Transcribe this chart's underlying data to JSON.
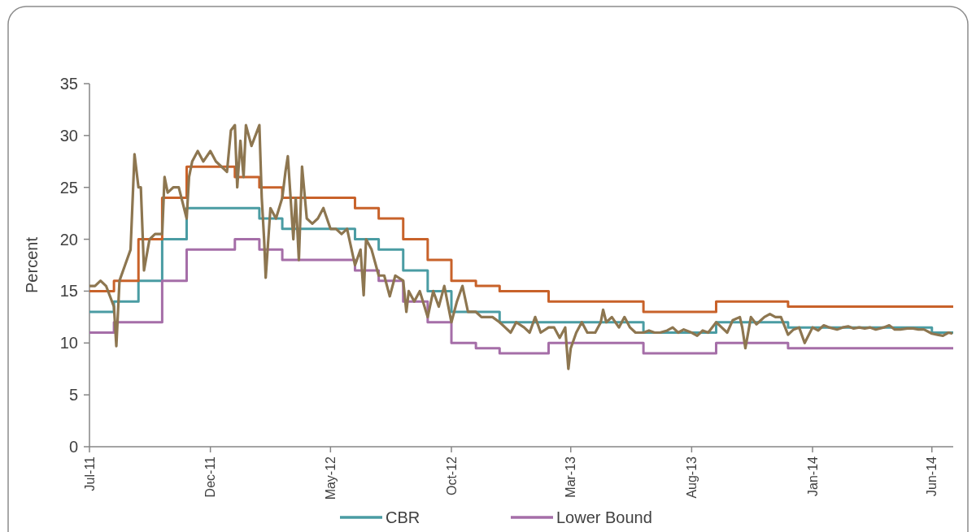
{
  "chart_data": {
    "type": "line",
    "ylabel": "Percent",
    "xlim": [
      "2011-07-01",
      "2014-06-28"
    ],
    "xticks": [
      {
        "value": "2011-07-01",
        "label": "Jul-11"
      },
      {
        "value": "2011-12-01",
        "label": "Dec-11"
      },
      {
        "value": "2012-05-01",
        "label": "May-12"
      },
      {
        "value": "2012-10-01",
        "label": "Oct-12"
      },
      {
        "value": "2013-03-01",
        "label": "Mar-13"
      },
      {
        "value": "2013-08-01",
        "label": "Aug-13"
      },
      {
        "value": "2014-01-01",
        "label": "Jan-14"
      },
      {
        "value": "2014-06-01",
        "label": "Jun-14"
      }
    ],
    "ylim": [
      0,
      35
    ],
    "yticks": [
      0,
      5,
      10,
      15,
      20,
      25,
      30,
      35
    ],
    "grid": false,
    "legend": "bottom",
    "marker": "none",
    "line_style": "solid",
    "series": [
      {
        "name": "CBR",
        "type": "step",
        "color": "#4a9ca3",
        "x": [
          "2011-07-01",
          "2011-08-01",
          "2011-09-01",
          "2011-10-01",
          "2011-11-01",
          "2012-02-01",
          "2012-03-01",
          "2012-06-01",
          "2012-07-01",
          "2012-08-01",
          "2012-09-01",
          "2012-10-01",
          "2012-12-01",
          "2013-06-01",
          "2013-09-01",
          "2013-12-01",
          "2014-06-01",
          "2014-06-28"
        ],
        "values": [
          13,
          14,
          16,
          20,
          23,
          22,
          21,
          20,
          19,
          17,
          15,
          13,
          12,
          11,
          12,
          11.5,
          11,
          11
        ]
      },
      {
        "name": "Lower Bound",
        "type": "step",
        "color": "#a56ea8",
        "x": [
          "2011-07-01",
          "2011-08-01",
          "2011-10-01",
          "2011-11-01",
          "2012-01-01",
          "2012-02-01",
          "2012-03-01",
          "2012-06-01",
          "2012-07-01",
          "2012-08-01",
          "2012-09-01",
          "2012-10-01",
          "2012-11-01",
          "2012-12-01",
          "2013-02-01",
          "2013-06-01",
          "2013-09-01",
          "2013-12-01",
          "2014-06-28"
        ],
        "values": [
          11,
          12,
          16,
          19,
          20,
          19,
          18,
          17,
          16,
          14,
          12,
          10,
          9.5,
          9,
          10,
          9,
          10,
          9.5,
          9.5
        ]
      },
      {
        "type": "step",
        "color": "#c8622a",
        "x": [
          "2011-07-01",
          "2011-08-01",
          "2011-09-01",
          "2011-10-01",
          "2011-11-01",
          "2012-01-01",
          "2012-02-01",
          "2012-03-01",
          "2012-06-01",
          "2012-07-01",
          "2012-08-01",
          "2012-09-01",
          "2012-10-01",
          "2012-11-01",
          "2012-12-01",
          "2013-02-01",
          "2013-06-01",
          "2013-09-01",
          "2013-12-01",
          "2014-06-28"
        ],
        "values": [
          15,
          16,
          20,
          24,
          27,
          26,
          25,
          24,
          23,
          22,
          20,
          18,
          16,
          15.5,
          15,
          14,
          13,
          14,
          13.5,
          13.5
        ]
      },
      {
        "color": "#8d7650",
        "x": [
          "2011-07-01",
          "2011-07-08",
          "2011-07-15",
          "2011-07-22",
          "2011-08-01",
          "2011-08-04",
          "2011-08-08",
          "2011-08-15",
          "2011-08-22",
          "2011-08-27",
          "2011-09-01",
          "2011-09-04",
          "2011-09-08",
          "2011-09-15",
          "2011-09-22",
          "2011-10-01",
          "2011-10-04",
          "2011-10-08",
          "2011-10-15",
          "2011-10-22",
          "2011-11-01",
          "2011-11-04",
          "2011-11-08",
          "2011-11-15",
          "2011-11-22",
          "2011-12-01",
          "2011-12-08",
          "2011-12-15",
          "2011-12-22",
          "2011-12-27",
          "2012-01-01",
          "2012-01-04",
          "2012-01-08",
          "2012-01-12",
          "2012-01-15",
          "2012-01-22",
          "2012-02-01",
          "2012-02-04",
          "2012-02-07",
          "2012-02-09",
          "2012-02-15",
          "2012-02-22",
          "2012-03-01",
          "2012-03-05",
          "2012-03-08",
          "2012-03-15",
          "2012-03-18",
          "2012-03-22",
          "2012-03-26",
          "2012-04-01",
          "2012-04-08",
          "2012-04-15",
          "2012-04-22",
          "2012-05-01",
          "2012-05-08",
          "2012-05-15",
          "2012-05-22",
          "2012-06-01",
          "2012-06-08",
          "2012-06-12",
          "2012-06-15",
          "2012-06-22",
          "2012-07-01",
          "2012-07-08",
          "2012-07-15",
          "2012-07-22",
          "2012-08-01",
          "2012-08-05",
          "2012-08-08",
          "2012-08-15",
          "2012-08-22",
          "2012-09-01",
          "2012-09-08",
          "2012-09-15",
          "2012-09-22",
          "2012-10-01",
          "2012-10-08",
          "2012-10-15",
          "2012-10-22",
          "2012-11-01",
          "2012-11-08",
          "2012-11-15",
          "2012-11-22",
          "2012-12-01",
          "2012-12-08",
          "2012-12-15",
          "2012-12-22",
          "2013-01-01",
          "2013-01-08",
          "2013-01-15",
          "2013-01-22",
          "2013-02-01",
          "2013-02-08",
          "2013-02-15",
          "2013-02-22",
          "2013-02-26",
          "2013-03-01",
          "2013-03-08",
          "2013-03-15",
          "2013-03-22",
          "2013-04-01",
          "2013-04-08",
          "2013-04-11",
          "2013-04-15",
          "2013-04-22",
          "2013-05-01",
          "2013-05-08",
          "2013-05-15",
          "2013-05-22",
          "2013-06-01",
          "2013-06-08",
          "2013-06-15",
          "2013-06-22",
          "2013-07-01",
          "2013-07-08",
          "2013-07-15",
          "2013-07-22",
          "2013-08-01",
          "2013-08-08",
          "2013-08-15",
          "2013-08-22",
          "2013-09-01",
          "2013-09-08",
          "2013-09-15",
          "2013-09-22",
          "2013-10-01",
          "2013-10-04",
          "2013-10-08",
          "2013-10-15",
          "2013-10-22",
          "2013-11-01",
          "2013-11-08",
          "2013-11-15",
          "2013-11-22",
          "2013-12-01",
          "2013-12-08",
          "2013-12-15",
          "2013-12-22",
          "2014-01-01",
          "2014-01-08",
          "2014-01-15",
          "2014-01-22",
          "2014-02-01",
          "2014-02-08",
          "2014-02-15",
          "2014-02-22",
          "2014-03-01",
          "2014-03-08",
          "2014-03-15",
          "2014-03-22",
          "2014-04-01",
          "2014-04-08",
          "2014-04-15",
          "2014-04-22",
          "2014-05-01",
          "2014-05-08",
          "2014-05-15",
          "2014-05-22",
          "2014-06-01",
          "2014-06-08",
          "2014-06-15",
          "2014-06-22",
          "2014-06-27"
        ],
        "values": [
          15.5,
          15.5,
          16,
          15.5,
          13.5,
          9.7,
          16,
          17.5,
          19,
          28.2,
          25,
          25,
          17,
          20,
          20.5,
          20.5,
          26,
          24.5,
          25,
          25,
          22,
          26,
          27.5,
          28.5,
          27.5,
          28.5,
          27.5,
          27,
          26.5,
          30.5,
          31,
          25,
          29.5,
          26,
          31,
          29,
          31,
          24,
          20,
          16.3,
          23,
          22,
          24,
          26.5,
          28,
          20,
          24,
          18,
          27,
          22,
          21.5,
          22,
          23,
          21,
          21,
          20.5,
          21,
          17.5,
          19,
          14.6,
          20,
          19,
          16.5,
          16.5,
          14.5,
          16.5,
          16,
          13,
          15,
          14,
          15,
          12.5,
          15,
          13.5,
          15.5,
          12,
          14,
          15.5,
          13,
          13,
          12.5,
          12.5,
          12.5,
          12,
          11.5,
          11,
          12,
          11.5,
          11,
          12.5,
          11,
          11.5,
          11.5,
          10.5,
          11.5,
          7.5,
          9.5,
          11,
          12,
          11,
          11,
          12,
          13.2,
          12,
          12.5,
          11.5,
          12.5,
          11.5,
          11,
          11,
          11.2,
          11,
          11,
          11.2,
          11.5,
          11,
          11.3,
          11,
          10.7,
          11.2,
          11,
          12,
          11.5,
          11,
          12.2,
          12.5,
          11.5,
          9.5,
          12.5,
          11.8,
          12.5,
          12.8,
          12.5,
          12.5,
          10.8,
          11.3,
          11.5,
          10,
          11.5,
          11.2,
          11.7,
          11.5,
          11.3,
          11.5,
          11.6,
          11.4,
          11.5,
          11.4,
          11.5,
          11.3,
          11.5,
          11.7,
          11.3,
          11.3,
          11.4,
          11.4,
          11.3,
          11.3,
          10.9,
          10.8,
          10.7,
          11,
          10.9
        ]
      }
    ]
  }
}
